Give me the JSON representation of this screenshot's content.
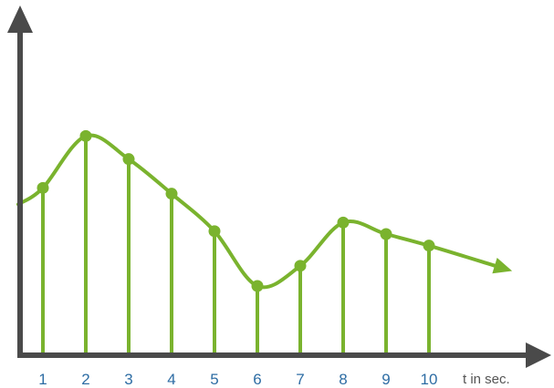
{
  "chart_data": {
    "type": "line",
    "x": [
      1,
      2,
      3,
      4,
      5,
      6,
      7,
      8,
      9,
      10
    ],
    "values": [
      5.8,
      7.6,
      6.8,
      5.6,
      4.3,
      2.4,
      3.1,
      4.6,
      4.2,
      3.8
    ],
    "tick_labels": [
      "1",
      "2",
      "3",
      "4",
      "5",
      "6",
      "7",
      "8",
      "9",
      "10"
    ],
    "xlabel": "t in sec.",
    "ylabel": "",
    "title": "",
    "ylim": [
      0,
      12
    ],
    "grid": false,
    "stems": true,
    "colors": {
      "series": "#7ab32e",
      "axis": "#4a4a4a",
      "tick_text": "#2e6da4",
      "unit_text": "#555555"
    }
  }
}
